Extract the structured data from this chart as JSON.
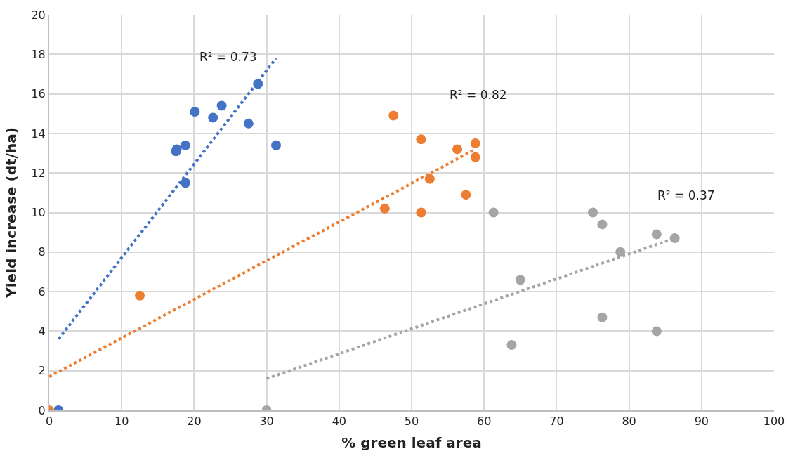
{
  "chart_data": {
    "type": "scatter",
    "xlabel": "% green leaf area",
    "ylabel": "Yield increase (dt/ha)",
    "xlim": [
      0,
      100
    ],
    "xticks": [
      0,
      10,
      20,
      30,
      40,
      50,
      60,
      70,
      80,
      90,
      100
    ],
    "ylim": [
      0,
      20
    ],
    "yticks": [
      0,
      2,
      4,
      6,
      8,
      10,
      12,
      14,
      16,
      18,
      20
    ],
    "grid": true,
    "marker": "circle",
    "series": [
      {
        "color": "#4472c4",
        "x": [
          1.3,
          17.5,
          17.6,
          18.8,
          18.8,
          20.1,
          22.6,
          23.8,
          27.5,
          28.8,
          31.3
        ],
        "values": [
          0,
          13.1,
          13.2,
          13.4,
          11.5,
          15.1,
          14.8,
          15.4,
          14.5,
          16.5,
          13.4
        ]
      },
      {
        "color": "#ed7d31",
        "x": [
          0,
          12.5,
          47.5,
          51.3,
          56.3,
          58.8,
          58.8,
          52.5,
          57.5,
          46.3,
          51.3
        ],
        "values": [
          0,
          5.8,
          14.9,
          13.7,
          13.2,
          13.5,
          12.8,
          11.7,
          10.9,
          10.2,
          10.0
        ]
      },
      {
        "color": "#a5a5a5",
        "x": [
          30,
          61.3,
          75,
          76.3,
          83.8,
          86.3,
          78.8,
          65,
          76.3,
          83.8,
          63.8
        ],
        "values": [
          0,
          10,
          10,
          9.4,
          8.9,
          8.7,
          8.0,
          6.6,
          4.7,
          4.0,
          3.3
        ]
      },
      {
        "type": "line",
        "color": "#4472c4",
        "line_style": "dotted",
        "marker": "none",
        "x": [
          1.3,
          31.3
        ],
        "values": [
          3.6,
          17.8
        ]
      },
      {
        "type": "line",
        "color": "#ed7d31",
        "line_style": "dotted",
        "marker": "none",
        "x": [
          0,
          58.8
        ],
        "values": [
          1.7,
          13.2
        ]
      },
      {
        "type": "line",
        "color": "#a5a5a5",
        "line_style": "dotted",
        "marker": "none",
        "x": [
          30,
          86.3
        ],
        "values": [
          1.6,
          8.7
        ]
      }
    ],
    "annotations": [
      "R² = 0.73",
      "R² = 0.82",
      "R² = 0.37"
    ]
  }
}
